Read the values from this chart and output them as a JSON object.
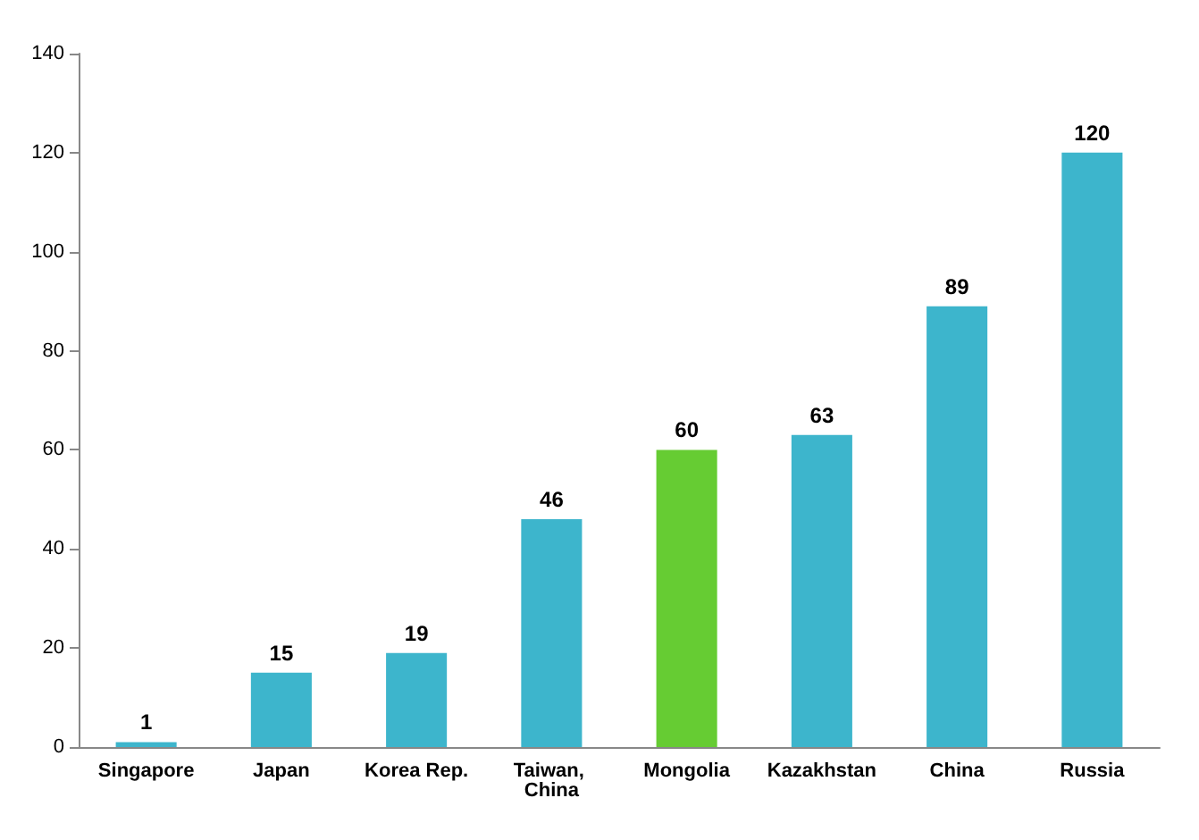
{
  "chart_data": {
    "type": "bar",
    "categories": [
      "Singapore",
      "Japan",
      "Korea Rep.",
      "Taiwan, China",
      "Mongolia",
      "Kazakhstan",
      "China",
      "Russia"
    ],
    "values": [
      1,
      15,
      19,
      46,
      60,
      63,
      89,
      120
    ],
    "colors": [
      "#3db5cc",
      "#3db5cc",
      "#3db5cc",
      "#3db5cc",
      "#66cc33",
      "#3db5cc",
      "#3db5cc",
      "#3db5cc"
    ],
    "ylim": [
      0,
      140
    ],
    "yticks": [
      0,
      20,
      40,
      60,
      80,
      100,
      120,
      140
    ],
    "grid": false,
    "data_labels": true
  }
}
